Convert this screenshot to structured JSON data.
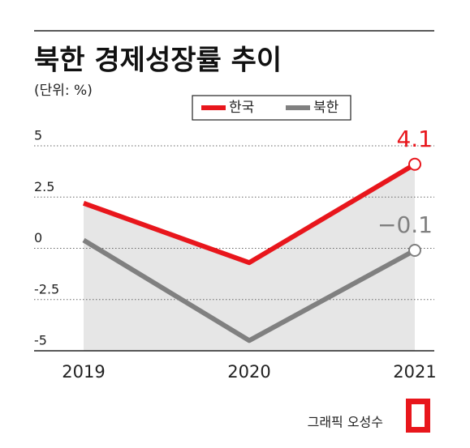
{
  "chart_data": {
    "type": "line",
    "title": "북한 경제성장률 추이",
    "subtitle": "(단위: %)",
    "x": [
      "2019",
      "2020",
      "2021"
    ],
    "series": [
      {
        "name": "한국",
        "color": "#e8161c",
        "values": [
          2.2,
          -0.7,
          4.1
        ],
        "value_labels": [
          null,
          null,
          "4.1"
        ]
      },
      {
        "name": "북한",
        "color": "#808080",
        "values": [
          0.4,
          -4.5,
          -0.1
        ],
        "value_labels": [
          null,
          null,
          "−0.1"
        ]
      }
    ],
    "ylim": [
      -5,
      5
    ],
    "yticks": [
      -5,
      -2.5,
      0,
      2.5,
      5
    ],
    "grid": true,
    "credit": "그래픽 오성수"
  }
}
